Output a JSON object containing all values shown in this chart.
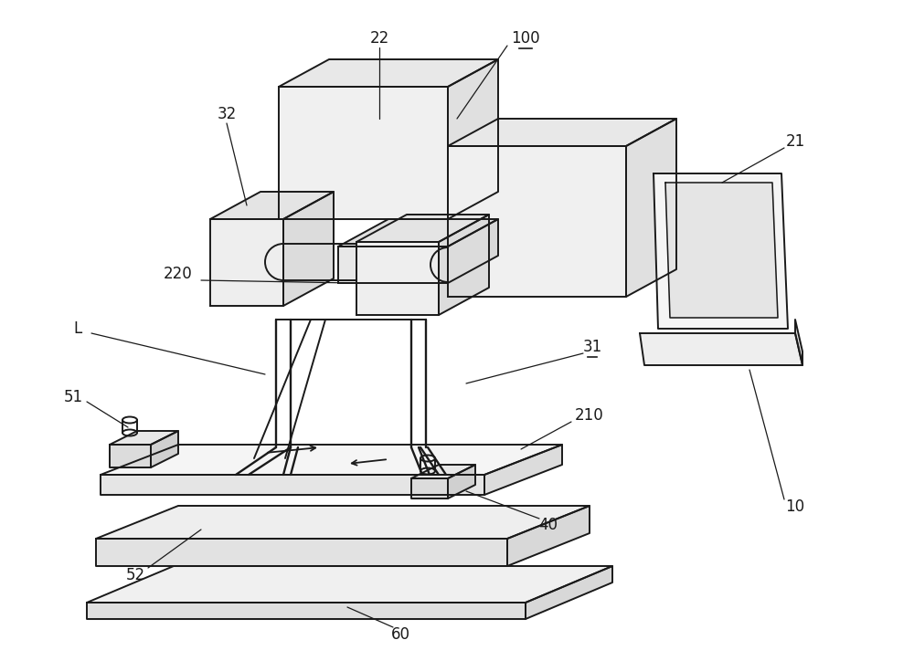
{
  "background_color": "#ffffff",
  "line_color": "#1a1a1a",
  "line_width": 1.4,
  "fig_width": 10.0,
  "fig_height": 7.24,
  "label_fontsize": 12
}
